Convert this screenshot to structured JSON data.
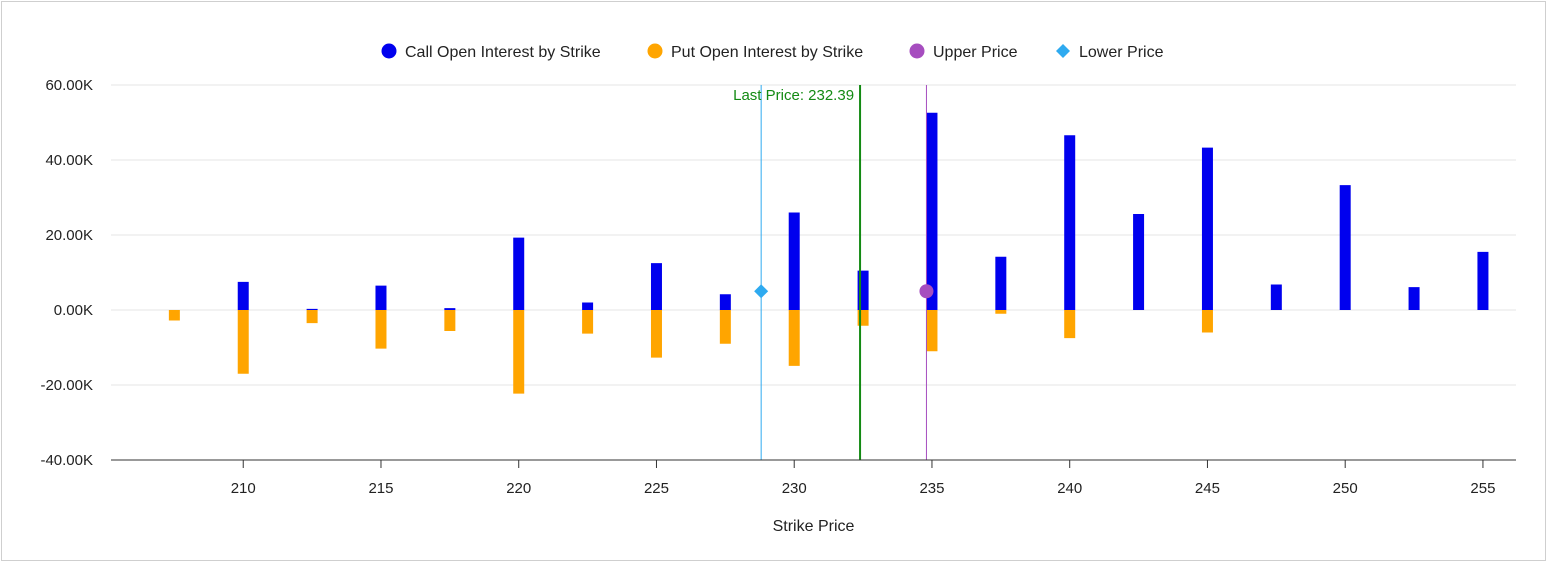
{
  "chart_data": {
    "type": "bar",
    "xlabel": "Strike Price",
    "ylabel": "",
    "xlim": [
      205.2,
      256.2
    ],
    "ylim": [
      -40000,
      60000
    ],
    "y_ticks": [
      60000,
      40000,
      20000,
      0,
      -20000,
      -40000
    ],
    "y_tick_labels": [
      "60.00K",
      "40.00K",
      "20.00K",
      "0.00K",
      "-20.00K",
      "-40.00K"
    ],
    "x_ticks": [
      210,
      215,
      220,
      225,
      230,
      235,
      240,
      245,
      250,
      255
    ],
    "x_tick_labels": [
      "210",
      "215",
      "220",
      "225",
      "230",
      "235",
      "240",
      "245",
      "250",
      "255"
    ],
    "grid": true,
    "legend": {
      "position": "top-center",
      "entries": [
        {
          "name": "Call Open Interest by Strike",
          "color": "#0000ee",
          "marker": "circle"
        },
        {
          "name": "Put Open Interest by Strike",
          "color": "#ffa500",
          "marker": "circle"
        },
        {
          "name": "Upper Price",
          "color": "#a64dbf",
          "marker": "circle"
        },
        {
          "name": "Lower Price",
          "color": "#2eaaf0",
          "marker": "diamond"
        }
      ]
    },
    "series": [
      {
        "name": "Call Open Interest by Strike",
        "color": "#0000ee",
        "x": [
          207.5,
          210,
          212.5,
          215,
          217.5,
          220,
          222.5,
          225,
          227.5,
          230,
          232.5,
          235,
          237.5,
          240,
          242.5,
          245,
          247.5,
          250,
          252.5,
          255
        ],
        "values": [
          0,
          7500,
          300,
          6500,
          500,
          19300,
          2000,
          12500,
          4200,
          26000,
          10500,
          52600,
          14200,
          46600,
          25600,
          43300,
          6800,
          33300,
          6100,
          15500
        ]
      },
      {
        "name": "Put Open Interest by Strike",
        "color": "#ffa500",
        "x": [
          207.5,
          210,
          212.5,
          215,
          217.5,
          220,
          222.5,
          225,
          227.5,
          230,
          232.5,
          235,
          237.5,
          240,
          242.5,
          245,
          247.5,
          250,
          252.5,
          255
        ],
        "values": [
          -2800,
          -17000,
          -3500,
          -10300,
          -5600,
          -22300,
          -6300,
          -12700,
          -9000,
          -14900,
          -4200,
          -11000,
          -1000,
          -7500,
          0,
          -6000,
          0,
          0,
          0,
          0
        ]
      }
    ],
    "markers": [
      {
        "name": "Upper Price",
        "x": 234.8,
        "y": 5000,
        "color": "#a64dbf",
        "shape": "circle"
      },
      {
        "name": "Lower Price",
        "x": 228.8,
        "y": 5000,
        "color": "#2eaaf0",
        "shape": "diamond"
      }
    ],
    "vertical_lines": [
      {
        "name": "lower-price-line",
        "x": 228.8,
        "color": "#2eaaf0"
      },
      {
        "name": "upper-price-line",
        "x": 234.8,
        "color": "#a64dbf"
      },
      {
        "name": "last-price-line",
        "x": 232.39,
        "color": "#138a13",
        "label": "Last Price: 232.39"
      }
    ]
  }
}
